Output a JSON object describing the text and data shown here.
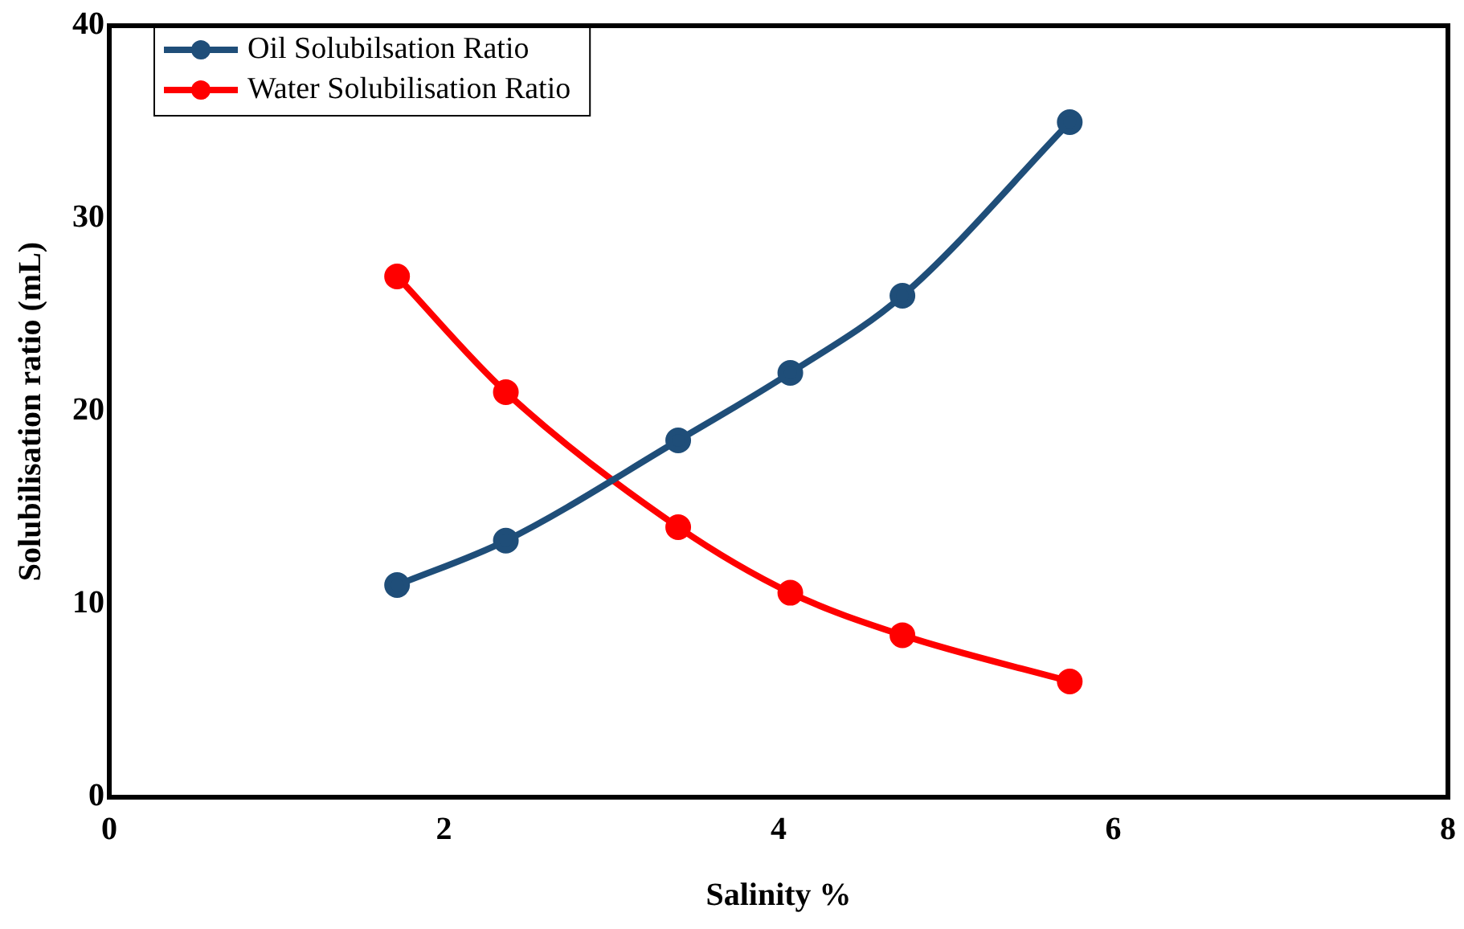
{
  "chart_data": {
    "type": "line",
    "xlabel": "Salinity %",
    "ylabel": "Solubilisation ratio (mL)",
    "xlim": [
      0,
      8
    ],
    "xticks": [
      0,
      2,
      4,
      6,
      8
    ],
    "ylim": [
      0,
      40
    ],
    "yticks": [
      0,
      10,
      20,
      30,
      40
    ],
    "grid": false,
    "legend": "top left",
    "marker": "circle",
    "line_style": "solid",
    "series": [
      {
        "name": "Oil Solubilsation Ratio",
        "color": "#1f4e79",
        "x": [
          1.72,
          2.37,
          3.4,
          4.07,
          4.74,
          5.74
        ],
        "values": [
          11,
          13.3,
          18.5,
          22,
          26,
          35
        ]
      },
      {
        "name": "Water Solubilisation Ratio",
        "color": "#ff0000",
        "x": [
          1.72,
          2.37,
          3.4,
          4.07,
          4.74,
          5.74
        ],
        "values": [
          27,
          21,
          14,
          10.6,
          8.4,
          6
        ]
      }
    ]
  }
}
